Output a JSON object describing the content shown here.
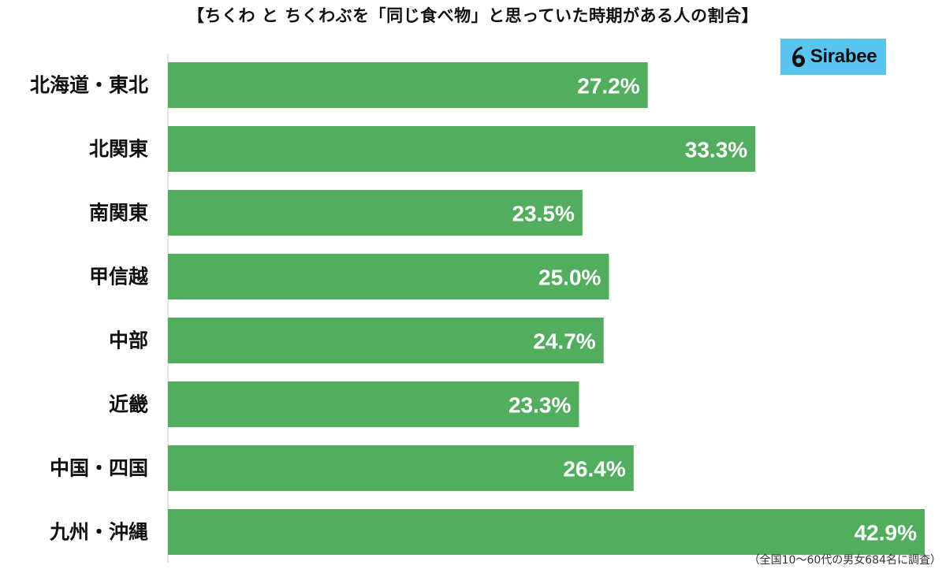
{
  "title": "【ちくわ と ちくわぶを「同じ食べ物」と思っていた時期がある人の割合】",
  "logo": {
    "text": "Sirabee",
    "icon": "sirabee-logo-icon",
    "color": "#5bc4ee"
  },
  "footnote": "（全国10～60代の男女684名に調査）",
  "colors": {
    "bar": "#52ae5e",
    "label_text": "#111111",
    "value_text": "#ffffff",
    "axis": "#cccccc"
  },
  "chart_data": {
    "type": "bar",
    "orientation": "horizontal",
    "title": "【ちくわ と ちくわぶを「同じ食べ物」と思っていた時期がある人の割合】",
    "categories": [
      "北海道・東北",
      "北関東",
      "南関東",
      "甲信越",
      "中部",
      "近畿",
      "中国・四国",
      "九州・沖縄"
    ],
    "values": [
      27.2,
      33.3,
      23.5,
      25.0,
      24.7,
      23.3,
      26.4,
      42.9
    ],
    "value_labels": [
      "27.2%",
      "33.3%",
      "23.5%",
      "25.0%",
      "24.7%",
      "23.3%",
      "26.4%",
      "42.9%"
    ],
    "unit": "%",
    "xlim": [
      0,
      42.9
    ],
    "grid": false,
    "legend": "none"
  }
}
